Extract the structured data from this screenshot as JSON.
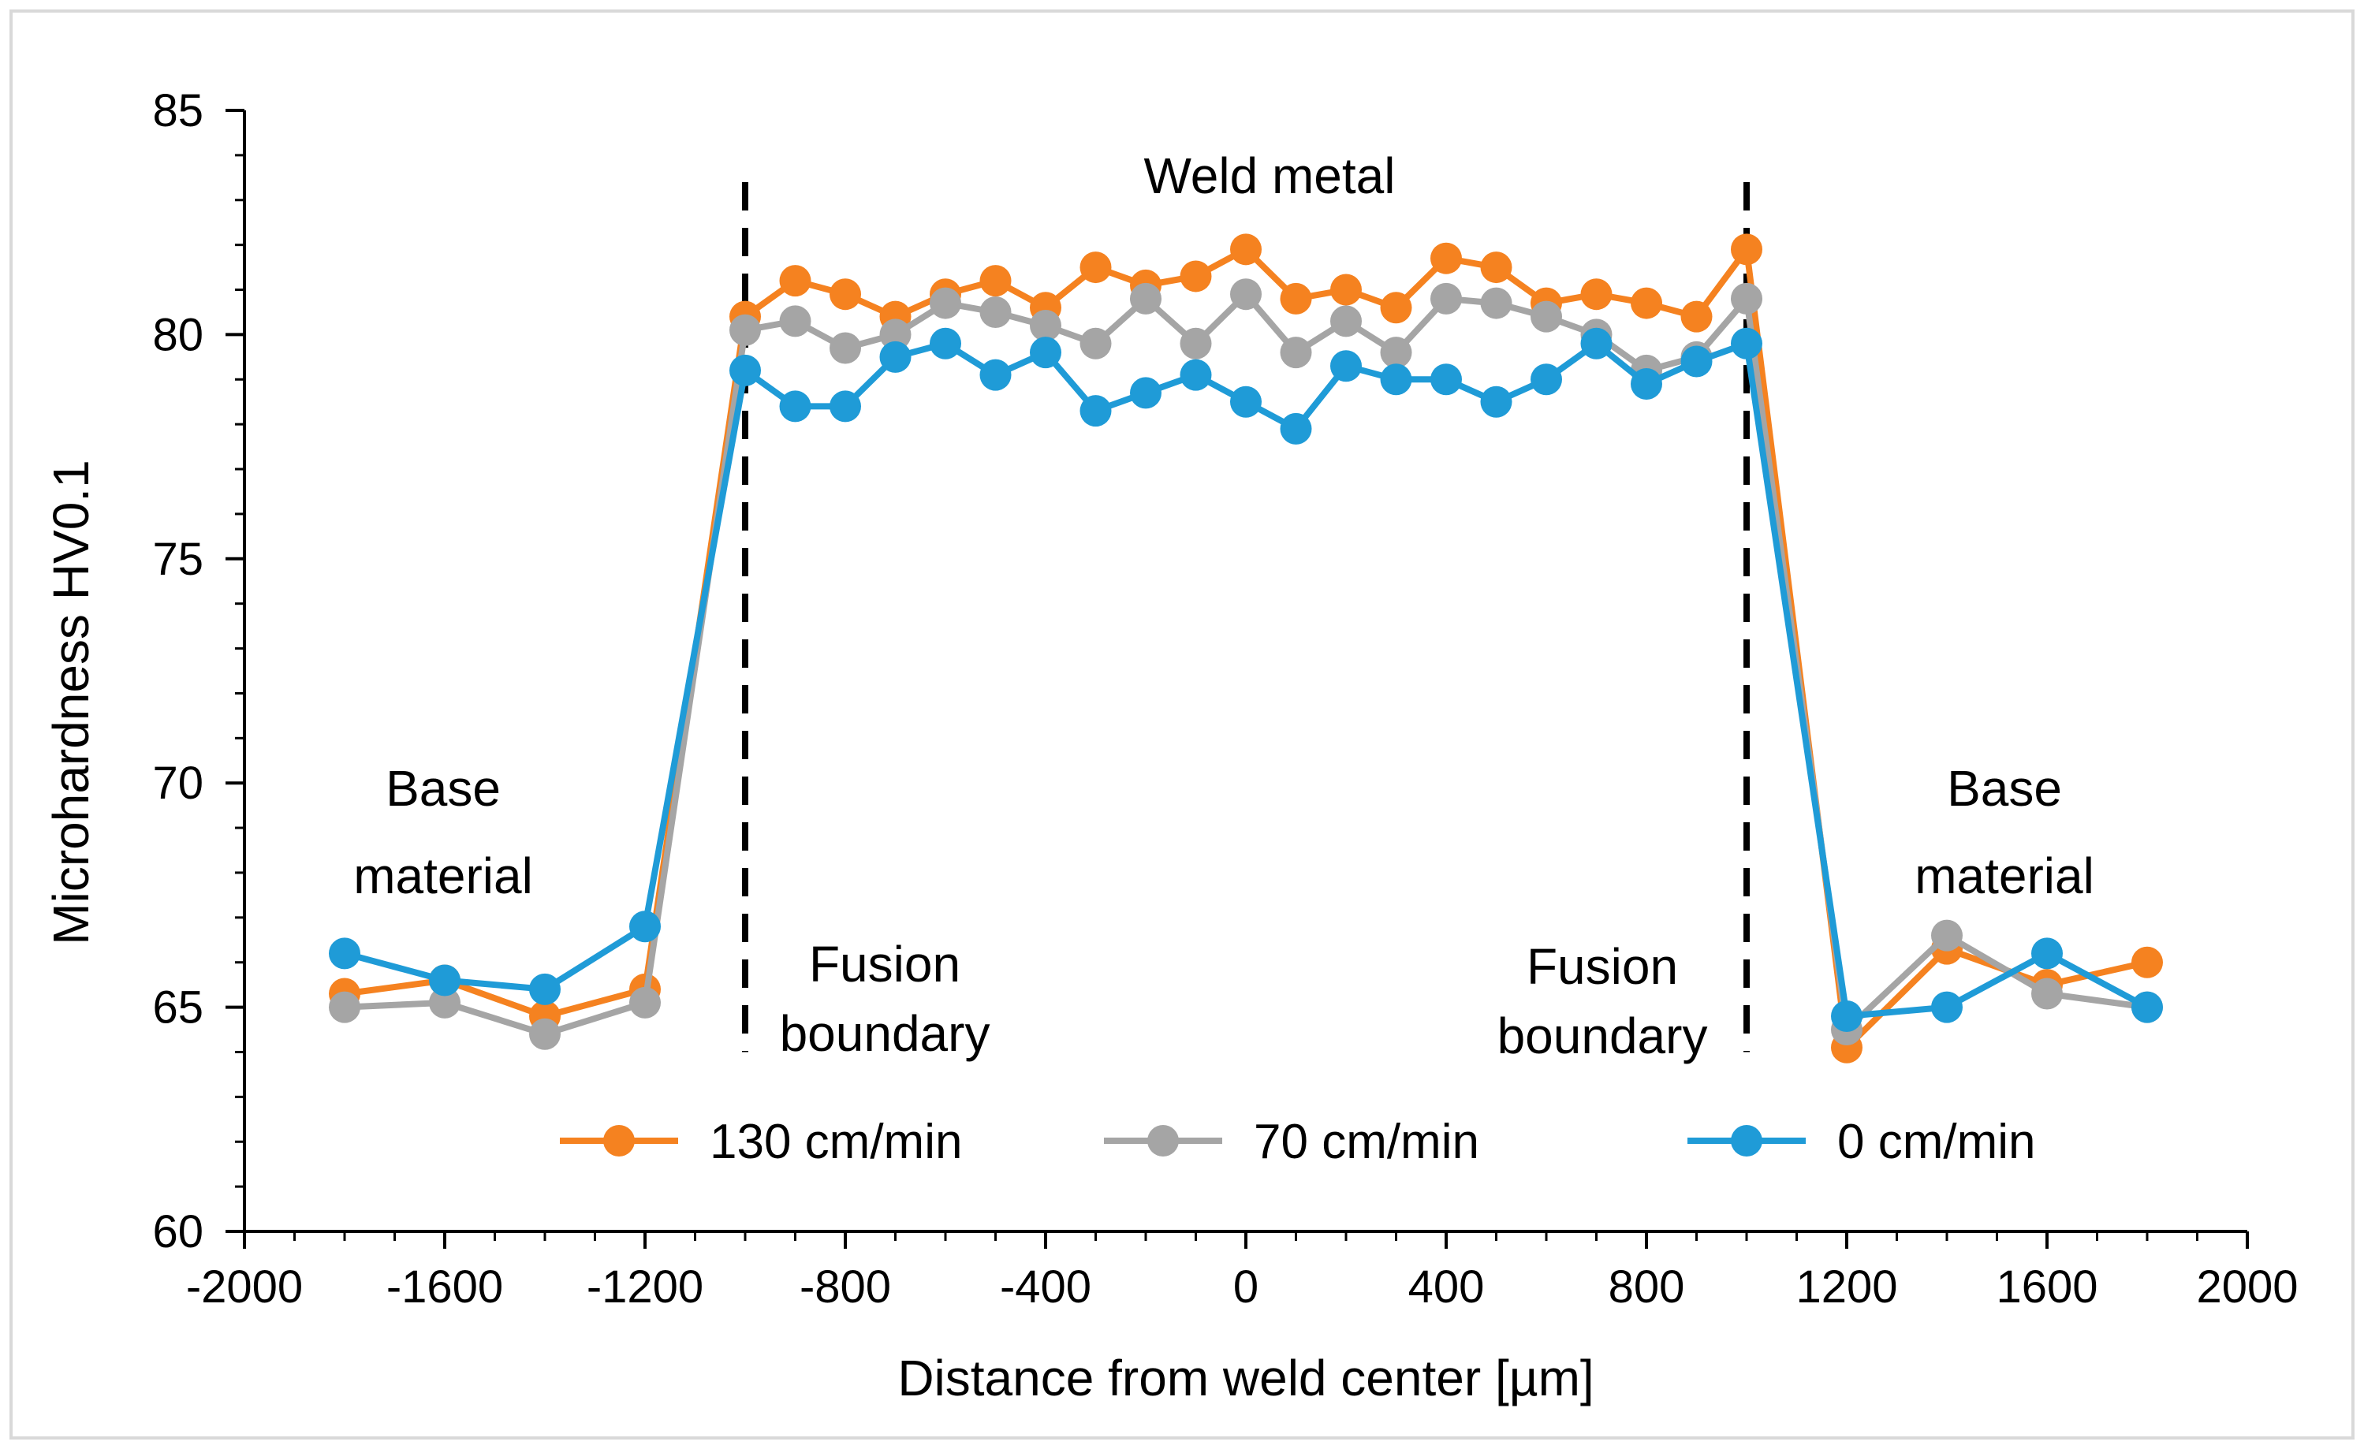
{
  "chart_data": {
    "type": "line",
    "title": "",
    "xlabel": "Distance from weld center [µm]",
    "ylabel": "Microhardness HV0.1",
    "xlim": [
      -2000,
      2000
    ],
    "ylim": [
      60,
      85
    ],
    "xticks": [
      -2000,
      -1600,
      -1200,
      -800,
      -400,
      0,
      400,
      800,
      1200,
      1600,
      2000
    ],
    "yticks": [
      60,
      65,
      70,
      75,
      80,
      85
    ],
    "x_minor_step": 100,
    "y_minor_step": 1,
    "grid": false,
    "legend_position": "bottom-center",
    "x": [
      -1800,
      -1600,
      -1400,
      -1200,
      -1000,
      -900,
      -800,
      -700,
      -600,
      -500,
      -400,
      -300,
      -200,
      -100,
      0,
      100,
      200,
      300,
      400,
      500,
      600,
      700,
      800,
      900,
      1000,
      1200,
      1400,
      1600,
      1800
    ],
    "series": [
      {
        "name": "130 cm/min",
        "color": "#f58220",
        "values": [
          65.3,
          65.6,
          64.8,
          65.4,
          80.4,
          81.2,
          80.9,
          80.4,
          80.9,
          81.2,
          80.6,
          81.5,
          81.1,
          81.3,
          81.9,
          80.8,
          81.0,
          80.6,
          81.7,
          81.5,
          80.7,
          80.9,
          80.7,
          80.4,
          81.9,
          64.1,
          66.3,
          65.5,
          66.0
        ]
      },
      {
        "name": "70 cm/min",
        "color": "#a5a5a5",
        "values": [
          65.0,
          65.1,
          64.4,
          65.1,
          80.1,
          80.3,
          79.7,
          80.0,
          80.7,
          80.5,
          80.2,
          79.8,
          80.8,
          79.8,
          80.9,
          79.6,
          80.3,
          79.6,
          80.8,
          80.7,
          80.4,
          80.0,
          79.2,
          79.5,
          80.8,
          64.5,
          66.6,
          65.3,
          65.0
        ]
      },
      {
        "name": "0 cm/min",
        "color": "#1f9bd7",
        "values": [
          66.2,
          65.6,
          65.4,
          66.8,
          79.2,
          78.4,
          78.4,
          79.5,
          79.8,
          79.1,
          79.6,
          78.3,
          78.7,
          79.1,
          78.5,
          77.9,
          79.3,
          79.0,
          79.0,
          78.5,
          79.0,
          79.8,
          78.9,
          79.4,
          79.8,
          64.8,
          65.0,
          66.2,
          65.0
        ]
      }
    ],
    "vlines": [
      -1000,
      1000
    ],
    "annotations": [
      {
        "id": "weld-metal-label",
        "lines": [
          "Weld metal"
        ]
      },
      {
        "id": "base-material-left-label",
        "lines": [
          "Base",
          "material"
        ]
      },
      {
        "id": "base-material-right-label",
        "lines": [
          "Base",
          "material"
        ]
      },
      {
        "id": "fusion-boundary-left-label",
        "lines": [
          "Fusion",
          "boundary"
        ]
      },
      {
        "id": "fusion-boundary-right-label",
        "lines": [
          "Fusion",
          "boundary"
        ]
      }
    ]
  }
}
